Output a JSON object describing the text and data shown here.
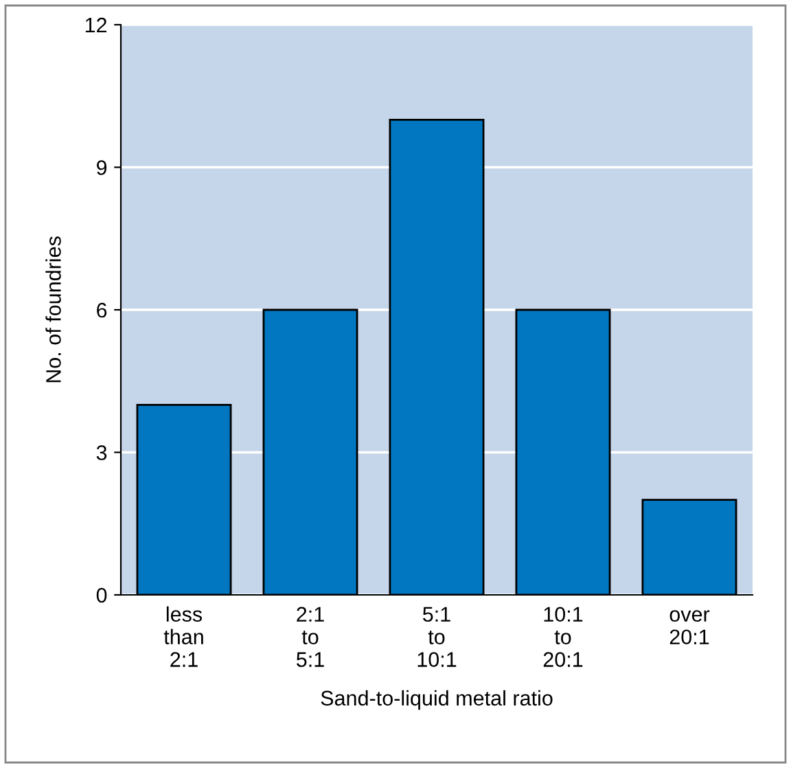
{
  "chart_data": {
    "type": "bar",
    "categories": [
      "less\nthan\n2:1",
      "2:1\nto\n5:1",
      "5:1\nto\n10:1",
      "10:1\nto\n20:1",
      "over\n20:1"
    ],
    "values": [
      4,
      6,
      10,
      6,
      2
    ],
    "color": "#0077c0",
    "xlabel": "Sand-to-liquid metal ratio",
    "ylabel": "No. of foundries",
    "ylim": [
      0,
      12
    ],
    "yticks": [
      0,
      3,
      6,
      9,
      12
    ],
    "grid": "y",
    "legend": false
  }
}
